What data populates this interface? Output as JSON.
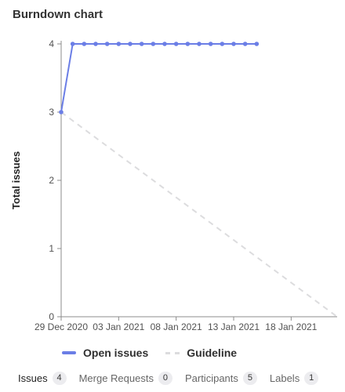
{
  "panel": {
    "title": "Burndown chart"
  },
  "chart_data": {
    "type": "line",
    "ylabel": "Total issues",
    "xlabel": "",
    "ylim": [
      0,
      4
    ],
    "yticks": [
      0,
      1,
      2,
      3,
      4
    ],
    "xlim": [
      "2020-12-29",
      "2021-01-22"
    ],
    "xticks": [
      {
        "date": "2020-12-29",
        "label": "29 Dec 2020"
      },
      {
        "date": "2021-01-03",
        "label": "03 Jan 2021"
      },
      {
        "date": "2021-01-08",
        "label": "08 Jan 2021"
      },
      {
        "date": "2021-01-13",
        "label": "13 Jan 2021"
      },
      {
        "date": "2021-01-18",
        "label": "18 Jan 2021"
      }
    ],
    "grid": false,
    "legend_position": "bottom",
    "series": [
      {
        "name": "Open issues",
        "color": "#6b7ee6",
        "style": "solid",
        "markers": true,
        "points": [
          {
            "x": "2020-12-29",
            "y": 3
          },
          {
            "x": "2020-12-30",
            "y": 4
          },
          {
            "x": "2020-12-31",
            "y": 4
          },
          {
            "x": "2021-01-01",
            "y": 4
          },
          {
            "x": "2021-01-02",
            "y": 4
          },
          {
            "x": "2021-01-03",
            "y": 4
          },
          {
            "x": "2021-01-04",
            "y": 4
          },
          {
            "x": "2021-01-05",
            "y": 4
          },
          {
            "x": "2021-01-06",
            "y": 4
          },
          {
            "x": "2021-01-07",
            "y": 4
          },
          {
            "x": "2021-01-08",
            "y": 4
          },
          {
            "x": "2021-01-09",
            "y": 4
          },
          {
            "x": "2021-01-10",
            "y": 4
          },
          {
            "x": "2021-01-11",
            "y": 4
          },
          {
            "x": "2021-01-12",
            "y": 4
          },
          {
            "x": "2021-01-13",
            "y": 4
          },
          {
            "x": "2021-01-14",
            "y": 4
          },
          {
            "x": "2021-01-15",
            "y": 4
          }
        ]
      },
      {
        "name": "Guideline",
        "color": "#dcdcde",
        "style": "dashed",
        "markers": false,
        "points": [
          {
            "x": "2020-12-29",
            "y": 3
          },
          {
            "x": "2021-01-22",
            "y": 0
          }
        ]
      }
    ]
  },
  "tabs": [
    {
      "label": "Issues",
      "count": "4",
      "active": true
    },
    {
      "label": "Merge Requests",
      "count": "0",
      "active": false
    },
    {
      "label": "Participants",
      "count": "5",
      "active": false
    },
    {
      "label": "Labels",
      "count": "1",
      "active": false
    }
  ]
}
